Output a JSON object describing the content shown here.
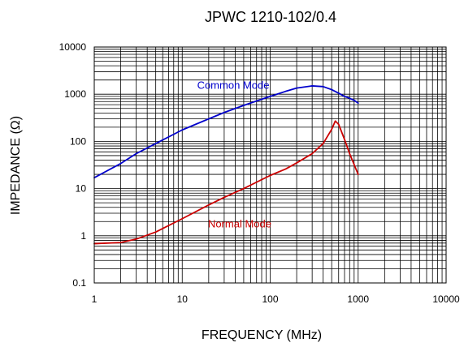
{
  "chart_data": {
    "type": "line",
    "title": "JPWC 1210-102/0.4",
    "xlabel": "FREQUENCY (MHz)",
    "ylabel": "IMPEDANCE (Ω)",
    "x_scale": "log",
    "y_scale": "log",
    "xlim": [
      1,
      10000
    ],
    "ylim": [
      0.1,
      10000
    ],
    "x_ticks": [
      "1",
      "10",
      "100",
      "1000",
      "10000"
    ],
    "y_ticks": [
      "10000",
      "1000",
      "100",
      "10",
      "1",
      "0.1"
    ],
    "grid": true,
    "legend": "none",
    "series": [
      {
        "name": "Common Mode",
        "color": "#0000cc",
        "x": [
          1,
          2,
          3,
          5,
          10,
          20,
          30,
          50,
          100,
          150,
          200,
          300,
          400,
          500,
          600,
          700,
          800,
          900,
          1000
        ],
        "y": [
          17,
          34,
          55,
          90,
          175,
          300,
          410,
          580,
          900,
          1150,
          1350,
          1500,
          1450,
          1250,
          1050,
          900,
          820,
          740,
          650
        ]
      },
      {
        "name": "Normal Mode",
        "color": "#cc0000",
        "x": [
          1,
          2,
          3,
          5,
          10,
          20,
          30,
          50,
          100,
          150,
          200,
          300,
          400,
          500,
          550,
          600,
          700,
          800,
          1000
        ],
        "y": [
          0.68,
          0.72,
          0.85,
          1.2,
          2.3,
          4.5,
          6.5,
          10,
          19,
          26,
          35,
          55,
          90,
          180,
          270,
          230,
          110,
          55,
          20
        ]
      }
    ],
    "annotations": [
      {
        "text": "Common Mode",
        "x": 38,
        "y": 1300,
        "color": "#0000cc"
      },
      {
        "text": "Normal Mode",
        "x": 45,
        "y": 1.5,
        "color": "#cc0000"
      }
    ]
  }
}
